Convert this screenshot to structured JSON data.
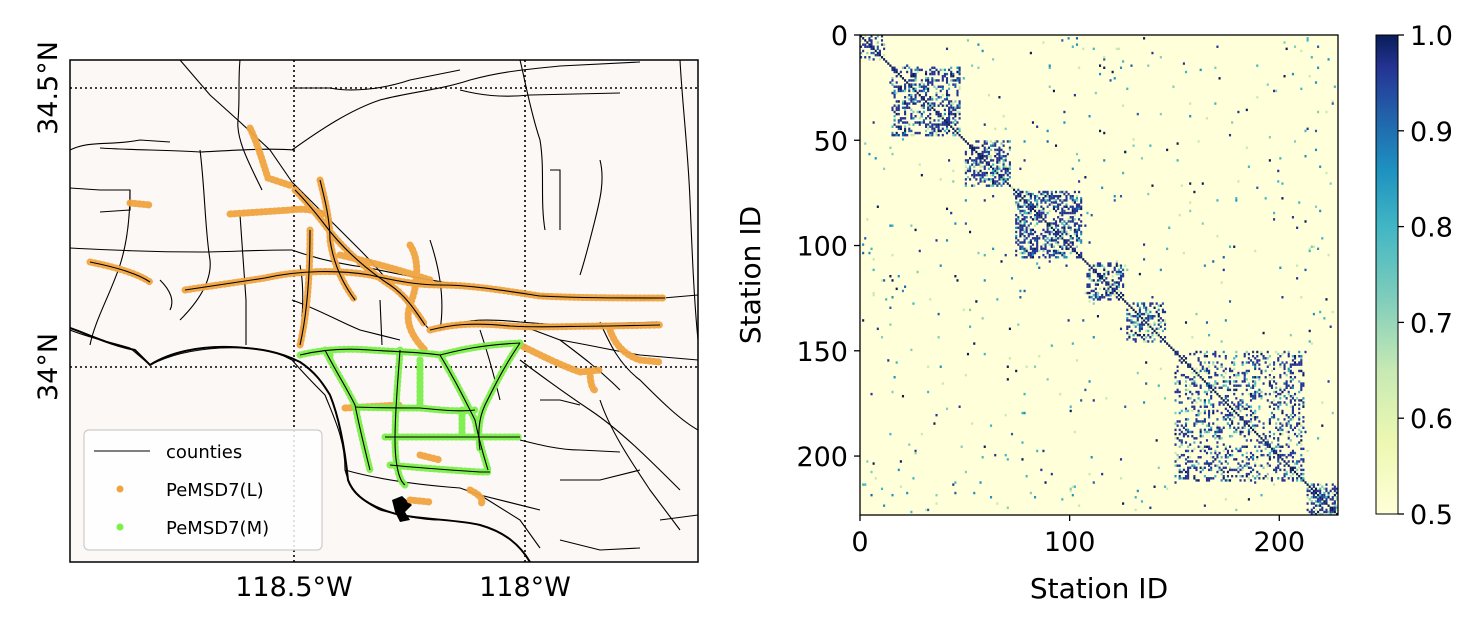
{
  "chart_data": [
    {
      "type": "scatter",
      "panel": "map",
      "x_ticks": [
        "118.5°W",
        "118°W"
      ],
      "y_ticks": [
        "34.5°N",
        "34°N"
      ],
      "x_tick_values": [
        -118.5,
        -118.0
      ],
      "y_tick_values": [
        34.5,
        34.0
      ],
      "xlim": [
        -119.0,
        -117.65
      ],
      "ylim": [
        33.55,
        34.62
      ],
      "grid": "dotted at ticks",
      "legend": {
        "placement": "bottom-left",
        "entries": [
          {
            "label": "counties",
            "kind": "line",
            "color": "#000000"
          },
          {
            "label": "PeMSD7(L)",
            "kind": "point",
            "color": "#f0a440"
          },
          {
            "label": "PeMSD7(M)",
            "kind": "point",
            "color": "#7cf04a"
          }
        ]
      },
      "colors": {
        "background": "#fcf8f6",
        "roads": "#000000",
        "large": "#f0a440",
        "medium": "#7cf04a"
      }
    },
    {
      "type": "heatmap",
      "panel": "adjacency",
      "xlabel": "Station ID",
      "ylabel": "Station ID",
      "x_ticks": [
        0,
        100,
        200
      ],
      "y_ticks": [
        0,
        50,
        100,
        150,
        200
      ],
      "xlim": [
        0,
        228
      ],
      "ylim": [
        228,
        0
      ],
      "colorbar": {
        "min": 0.5,
        "max": 1.0,
        "ticks": [
          "0.5",
          "0.6",
          "0.7",
          "0.8",
          "0.9",
          "1.0"
        ],
        "colormap": "YlGnBu"
      },
      "blocks": [
        {
          "start": 0,
          "end": 12,
          "density": 0.35
        },
        {
          "start": 15,
          "end": 48,
          "density": 0.4
        },
        {
          "start": 50,
          "end": 72,
          "density": 0.45
        },
        {
          "start": 74,
          "end": 106,
          "density": 0.45
        },
        {
          "start": 108,
          "end": 126,
          "density": 0.4
        },
        {
          "start": 127,
          "end": 146,
          "density": 0.4
        },
        {
          "start": 150,
          "end": 212,
          "density": 0.25
        },
        {
          "start": 213,
          "end": 228,
          "density": 0.5
        }
      ]
    }
  ]
}
